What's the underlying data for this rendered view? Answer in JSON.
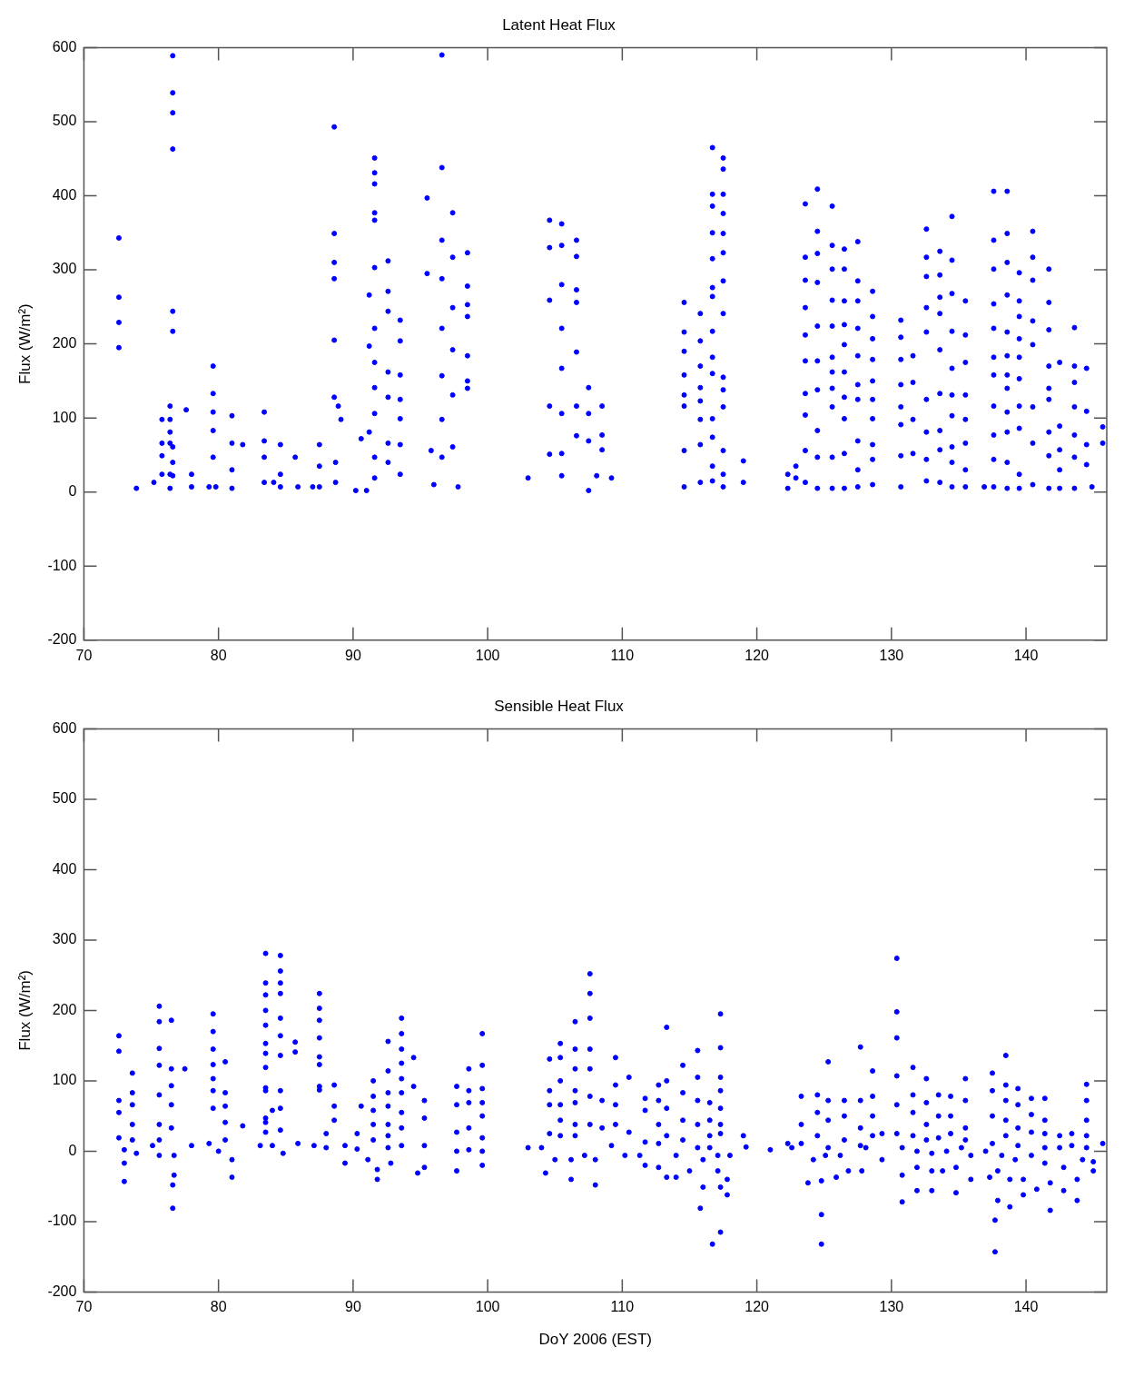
{
  "chart_data": [
    {
      "type": "scatter",
      "title": "Latent Heat Flux",
      "ylabel": "Flux (W/m²)",
      "xlim": [
        70,
        146
      ],
      "xticks": [
        70,
        80,
        90,
        100,
        110,
        120,
        130,
        140
      ],
      "ylim": [
        -200,
        600
      ],
      "yticks": [
        -200,
        -100,
        0,
        100,
        200,
        300,
        400,
        500,
        600
      ],
      "marker": "circle",
      "series": [
        {
          "color": "#0000ff",
          "x": [
            93.5,
            93.5,
            93.5,
            93.5,
            93.5,
            93.5,
            93.5,
            92.6,
            92.6,
            92.6,
            92.6,
            92.6,
            92.6,
            92.6,
            91.6,
            91.6,
            91.6,
            91.6,
            91.6,
            91.6,
            91.6,
            91.6,
            91.6,
            91.6,
            91.6,
            91.6,
            91.2,
            91.2,
            91.2,
            90.6,
            91.0,
            90.2,
            88.6,
            88.6,
            88.6,
            88.6,
            88.6,
            88.6,
            88.9,
            89.1,
            88.7,
            88.7,
            87.5,
            87.5,
            87.5,
            87.0,
            85.9,
            85.7,
            84.6,
            84.6,
            84.6,
            84.1,
            83.4,
            83.4,
            83.4,
            83.4,
            81.8,
            81.0,
            81.0,
            81.0,
            81.0,
            79.8,
            79.6,
            79.6,
            79.6,
            79.6,
            79.6,
            79.3,
            78.0,
            78.0,
            77.6,
            76.6,
            76.6,
            76.6,
            76.6,
            76.6,
            76.6,
            76.6,
            76.6,
            76.6,
            76.4,
            76.4,
            76.4,
            76.4,
            76.4,
            76.4,
            75.8,
            75.8,
            75.8,
            75.8,
            75.2,
            73.9,
            72.6,
            72.6,
            72.6,
            72.6,
            119.0,
            119.0,
            117.5,
            117.5,
            117.5,
            117.5,
            117.5,
            117.5,
            117.5,
            117.5,
            117.5,
            117.5,
            117.5,
            117.5,
            117.5,
            117.5,
            116.7,
            116.7,
            116.7,
            116.7,
            116.7,
            116.7,
            116.7,
            116.7,
            116.7,
            116.7,
            116.7,
            116.7,
            116.7,
            116.7,
            115.8,
            115.8,
            115.8,
            115.8,
            115.8,
            115.8,
            115.8,
            115.8,
            114.6,
            114.6,
            114.6,
            114.6,
            114.6,
            114.6,
            114.6,
            114.6,
            109.2,
            108.1,
            108.5,
            108.5,
            108.5,
            107.5,
            107.5,
            107.5,
            107.5,
            106.6,
            106.6,
            106.6,
            106.6,
            106.6,
            106.6,
            106.6,
            105.5,
            105.5,
            105.5,
            105.5,
            105.5,
            105.5,
            105.5,
            105.5,
            104.6,
            104.6,
            104.6,
            104.6,
            104.6,
            103.0,
            96.6,
            96.6,
            96.6,
            96.6,
            96.6,
            96.6,
            96.6,
            96.6,
            95.5,
            95.5,
            97.4,
            97.4,
            97.4,
            97.4,
            97.4,
            97.4,
            98.5,
            98.5,
            98.5,
            98.5,
            98.5,
            98.5,
            98.5,
            97.8,
            96.0,
            95.8,
            145.7,
            145.7,
            144.9,
            144.5,
            144.5,
            144.5,
            144.5,
            143.6,
            143.6,
            143.6,
            143.6,
            143.6,
            143.6,
            143.6,
            142.5,
            142.5,
            142.5,
            142.5,
            142.5,
            141.7,
            141.7,
            141.7,
            141.7,
            141.7,
            141.7,
            141.7,
            141.7,
            141.7,
            140.5,
            140.5,
            140.5,
            140.5,
            140.5,
            140.5,
            140.5,
            140.5,
            139.5,
            139.5,
            139.5,
            139.5,
            139.5,
            139.5,
            139.5,
            139.5,
            139.5,
            139.5,
            138.6,
            138.6,
            138.6,
            138.6,
            138.6,
            138.6,
            138.6,
            138.6,
            138.6,
            138.6,
            138.6,
            138.6,
            137.6,
            137.6,
            137.6,
            137.6,
            137.6,
            137.6,
            137.6,
            137.6,
            137.6,
            137.6,
            137.6,
            136.9,
            135.5,
            135.5,
            135.5,
            135.5,
            135.5,
            135.5,
            135.5,
            135.5,
            134.5,
            134.5,
            134.5,
            134.5,
            134.5,
            134.5,
            134.5,
            134.5,
            134.5,
            134.5,
            133.6,
            133.6,
            133.6,
            133.6,
            133.6,
            133.6,
            133.6,
            133.6,
            133.6,
            132.6,
            132.6,
            132.6,
            132.6,
            132.6,
            132.6,
            132.6,
            132.6,
            132.6,
            131.6,
            131.6,
            131.6,
            131.6,
            130.7,
            130.7,
            130.7,
            130.7,
            130.7,
            130.7,
            130.7,
            130.7,
            128.6,
            128.6,
            128.6,
            128.6,
            128.6,
            128.6,
            128.6,
            128.6,
            128.6,
            128.6,
            127.5,
            127.5,
            127.5,
            127.5,
            127.5,
            127.5,
            127.5,
            127.5,
            127.5,
            127.5,
            126.5,
            126.5,
            126.5,
            126.5,
            126.5,
            126.5,
            126.5,
            126.5,
            126.5,
            126.5,
            125.6,
            125.6,
            125.6,
            125.6,
            125.6,
            125.6,
            125.6,
            125.6,
            125.6,
            125.6,
            125.6,
            124.5,
            124.5,
            124.5,
            124.5,
            124.5,
            124.5,
            124.5,
            124.5,
            124.5,
            124.5,
            123.6,
            123.6,
            123.6,
            123.6,
            123.6,
            123.6,
            123.6,
            123.6,
            123.6,
            123.6,
            122.9,
            122.9,
            122.3,
            122.3
          ],
          "values": [
            232,
            204,
            158,
            125,
            99,
            64,
            24,
            312,
            271,
            244,
            162,
            128,
            66,
            40,
            451,
            431,
            416,
            377,
            367,
            303,
            221,
            175,
            141,
            106,
            47,
            19,
            266,
            197,
            81,
            72,
            2,
            2,
            493,
            349,
            310,
            288,
            205,
            128,
            116,
            98,
            40,
            13,
            64,
            35,
            7,
            7,
            7,
            47,
            64,
            24,
            7,
            13,
            108,
            69,
            47,
            13,
            64,
            103,
            66,
            30,
            5,
            7,
            170,
            133,
            108,
            83,
            47,
            7,
            24,
            7,
            111,
            589,
            539,
            512,
            463,
            244,
            217,
            61,
            40,
            22,
            116,
            98,
            81,
            66,
            24,
            5,
            98,
            66,
            49,
            24,
            13,
            5,
            343,
            263,
            229,
            195,
            42,
            13,
            451,
            436,
            402,
            376,
            349,
            323,
            285,
            241,
            155,
            138,
            115,
            56,
            24,
            7,
            465,
            402,
            386,
            350,
            315,
            276,
            264,
            217,
            182,
            160,
            99,
            74,
            35,
            15,
            241,
            204,
            170,
            141,
            123,
            98,
            64,
            13,
            256,
            216,
            190,
            158,
            131,
            116,
            56,
            7,
            19,
            22,
            116,
            77,
            57,
            141,
            106,
            69,
            2,
            340,
            318,
            273,
            256,
            189,
            116,
            76,
            362,
            333,
            280,
            221,
            167,
            106,
            52,
            22,
            367,
            330,
            259,
            116,
            51,
            19,
            590,
            438,
            340,
            288,
            221,
            157,
            98,
            47,
            397,
            295,
            377,
            317,
            249,
            192,
            131,
            61,
            323,
            278,
            253,
            237,
            184,
            150,
            140,
            7,
            10,
            56,
            88,
            66,
            7,
            167,
            109,
            64,
            37,
            222,
            170,
            148,
            115,
            77,
            47,
            5,
            175,
            89,
            57,
            30,
            5,
            301,
            256,
            219,
            170,
            140,
            125,
            81,
            49,
            5,
            352,
            317,
            286,
            231,
            199,
            115,
            66,
            10,
            296,
            258,
            237,
            207,
            182,
            153,
            116,
            86,
            24,
            5,
            406,
            349,
            310,
            266,
            216,
            184,
            158,
            140,
            108,
            81,
            40,
            5,
            406,
            340,
            301,
            254,
            221,
            182,
            158,
            116,
            77,
            44,
            7,
            7,
            258,
            212,
            175,
            131,
            98,
            66,
            30,
            7,
            372,
            313,
            268,
            217,
            167,
            131,
            103,
            61,
            40,
            7,
            325,
            293,
            263,
            241,
            192,
            133,
            83,
            57,
            13,
            355,
            317,
            291,
            249,
            216,
            125,
            81,
            44,
            15,
            184,
            148,
            98,
            52,
            232,
            209,
            179,
            145,
            115,
            91,
            49,
            7,
            271,
            237,
            207,
            179,
            150,
            125,
            99,
            64,
            44,
            10,
            338,
            285,
            258,
            221,
            184,
            145,
            125,
            69,
            30,
            7,
            328,
            301,
            258,
            226,
            199,
            162,
            128,
            99,
            52,
            5,
            386,
            333,
            301,
            259,
            224,
            182,
            162,
            140,
            115,
            47,
            5,
            409,
            352,
            322,
            283,
            224,
            177,
            138,
            83,
            47,
            5,
            389,
            317,
            286,
            249,
            212,
            177,
            133,
            104,
            56,
            13,
            35,
            19,
            24,
            5
          ]
        }
      ]
    },
    {
      "type": "scatter",
      "title": "Sensible Heat Flux",
      "xlabel": "DoY 2006 (EST)",
      "ylabel": "Flux (W/m²)",
      "xlim": [
        70,
        146
      ],
      "xticks": [
        70,
        80,
        90,
        100,
        110,
        120,
        130,
        140
      ],
      "ylim": [
        -200,
        600
      ],
      "yticks": [
        -200,
        -100,
        0,
        100,
        200,
        300,
        400,
        500,
        600
      ],
      "marker": "circle",
      "series": [
        {
          "color": "#0000ff",
          "x": [
            145.7,
            145.0,
            145.0,
            144.5,
            144.5,
            144.5,
            144.5,
            144.5,
            144.2,
            143.8,
            143.8,
            143.4,
            143.4,
            142.8,
            142.8,
            142.5,
            142.5,
            141.8,
            141.8,
            141.4,
            141.4,
            141.4,
            141.4,
            141.4,
            140.8,
            140.4,
            140.4,
            140.4,
            140.4,
            139.8,
            139.8,
            139.4,
            139.4,
            139.4,
            139.4,
            139.2,
            138.8,
            138.8,
            138.5,
            138.5,
            138.5,
            138.5,
            138.5,
            138.2,
            137.9,
            137.9,
            137.7,
            137.7,
            137.5,
            137.5,
            137.5,
            137.5,
            137.0,
            137.3,
            135.5,
            135.5,
            135.5,
            135.5,
            135.9,
            135.9,
            134.4,
            134.4,
            134.4,
            135.2,
            134.8,
            134.8,
            133.5,
            133.5,
            133.5,
            134.1,
            133.8,
            132.6,
            132.6,
            132.6,
            132.6,
            133.0,
            133.0,
            133.0,
            131.6,
            131.6,
            131.6,
            131.6,
            131.9,
            131.9,
            131.9,
            130.4,
            130.4,
            130.4,
            130.4,
            130.4,
            130.4,
            130.8,
            130.8,
            130.8,
            129.3,
            129.3,
            128.6,
            128.6,
            128.6,
            128.6,
            128.1,
            127.8,
            127.7,
            127.7,
            127.7,
            127.7,
            126.8,
            126.5,
            126.5,
            126.5,
            126.2,
            125.9,
            125.3,
            125.3,
            125.3,
            125.3,
            125.1,
            124.8,
            124.8,
            124.8,
            124.5,
            124.5,
            124.5,
            124.2,
            123.8,
            123.3,
            123.3,
            123.3,
            122.6,
            122.3,
            121.0,
            119.0,
            119.2,
            118.0,
            117.8,
            117.8,
            117.3,
            117.3,
            117.3,
            117.3,
            117.3,
            117.3,
            117.3,
            117.3,
            117.3,
            116.7,
            117.1,
            117.1,
            116.5,
            116.5,
            116.5,
            116.5,
            116.0,
            116.0,
            115.8,
            115.6,
            115.6,
            115.6,
            115.6,
            115.6,
            115.0,
            114.5,
            114.5,
            114.5,
            114.5,
            114.0,
            114.0,
            113.3,
            113.3,
            113.3,
            113.3,
            113.3,
            112.7,
            112.7,
            112.7,
            112.7,
            112.7,
            111.7,
            111.7,
            111.7,
            111.7,
            110.5,
            110.5,
            110.2,
            111.3,
            109.5,
            109.5,
            109.5,
            109.5,
            109.2,
            108.5,
            108.5,
            108.0,
            108.0,
            107.6,
            107.6,
            107.6,
            107.6,
            107.6,
            107.6,
            107.6,
            107.2,
            106.5,
            106.5,
            106.5,
            106.5,
            106.5,
            106.5,
            106.5,
            106.2,
            106.2,
            105.4,
            105.4,
            105.4,
            105.4,
            105.4,
            105.4,
            105.0,
            104.6,
            104.6,
            104.6,
            104.6,
            104.3,
            104.0,
            103.0,
            99.6,
            99.6,
            99.6,
            99.6,
            99.6,
            99.6,
            99.6,
            99.6,
            98.6,
            98.6,
            98.6,
            98.6,
            98.6,
            97.7,
            97.7,
            97.7,
            97.7,
            97.7,
            95.3,
            95.3,
            95.3,
            95.3,
            94.8,
            94.5,
            94.5,
            93.6,
            93.6,
            93.6,
            93.6,
            93.6,
            93.6,
            93.6,
            93.6,
            93.6,
            92.8,
            92.6,
            92.6,
            92.6,
            92.6,
            92.6,
            92.6,
            92.6,
            91.5,
            91.5,
            91.5,
            91.5,
            91.5,
            91.8,
            91.8,
            91.1,
            90.6,
            90.3,
            90.3,
            89.4,
            89.4,
            88.6,
            88.6,
            88.6,
            88.0,
            88.0,
            87.5,
            87.5,
            87.5,
            87.5,
            87.5,
            87.5,
            87.5,
            87.5,
            87.1,
            85.9,
            85.7,
            85.7,
            84.6,
            84.6,
            84.6,
            84.6,
            84.6,
            84.6,
            84.6,
            84.6,
            84.6,
            84.6,
            84.8,
            84.0,
            84.0,
            83.5,
            83.5,
            83.5,
            83.5,
            83.5,
            83.5,
            83.5,
            83.5,
            83.5,
            83.5,
            83.5,
            83.5,
            83.5,
            83.1,
            81.8,
            80.5,
            80.5,
            80.5,
            80.5,
            80.5,
            81.0,
            81.0,
            80.0,
            79.6,
            79.6,
            79.6,
            79.6,
            79.6,
            79.6,
            79.6,
            79.3,
            78.0,
            77.5,
            76.7,
            76.7,
            76.6,
            76.6,
            76.5,
            76.5,
            76.5,
            76.5,
            76.5,
            75.6,
            75.6,
            75.6,
            75.6,
            75.6,
            75.6,
            75.6,
            75.6,
            75.1,
            73.6,
            73.6,
            73.6,
            73.6,
            73.6,
            73.9,
            72.6,
            72.6,
            72.6,
            72.6,
            72.6,
            73.0,
            73.0,
            73.0
          ],
          "values": [
            11,
            -15,
            -28,
            95,
            72,
            44,
            22,
            5,
            -12,
            -40,
            -70,
            25,
            8,
            -23,
            -56,
            22,
            5,
            -45,
            -84,
            75,
            44,
            25,
            5,
            -17,
            -54,
            75,
            52,
            27,
            -6,
            -40,
            -62,
            89,
            66,
            33,
            8,
            -12,
            -40,
            -79,
            136,
            94,
            72,
            44,
            22,
            -6,
            -28,
            -70,
            -98,
            -143,
            111,
            86,
            50,
            11,
            0,
            -37,
            103,
            72,
            33,
            16,
            -6,
            -40,
            78,
            50,
            25,
            5,
            -23,
            -59,
            80,
            50,
            19,
            0,
            -28,
            103,
            69,
            38,
            16,
            -3,
            -28,
            -56,
            119,
            80,
            55,
            22,
            0,
            -23,
            -56,
            274,
            198,
            161,
            107,
            66,
            25,
            5,
            -34,
            -72,
            25,
            -12,
            114,
            78,
            50,
            22,
            5,
            -28,
            148,
            72,
            33,
            8,
            -28,
            72,
            50,
            16,
            -6,
            -37,
            127,
            72,
            44,
            5,
            -6,
            -42,
            -90,
            -132,
            80,
            55,
            22,
            -12,
            -45,
            78,
            38,
            11,
            5,
            11,
            2,
            22,
            6,
            -6,
            -40,
            -62,
            195,
            147,
            105,
            86,
            61,
            38,
            25,
            -51,
            -115,
            -132,
            -6,
            -28,
            69,
            44,
            22,
            5,
            -12,
            -51,
            -81,
            143,
            105,
            72,
            38,
            5,
            -28,
            122,
            83,
            44,
            16,
            -6,
            -37,
            176,
            100,
            61,
            22,
            -37,
            94,
            72,
            38,
            11,
            -23,
            75,
            58,
            13,
            -20,
            105,
            27,
            -6,
            -6,
            133,
            94,
            66,
            38,
            8,
            72,
            33,
            -12,
            -48,
            252,
            224,
            189,
            145,
            117,
            78,
            38,
            -6,
            184,
            145,
            117,
            86,
            69,
            38,
            22,
            -12,
            -40,
            153,
            133,
            100,
            66,
            44,
            22,
            -12,
            131,
            86,
            66,
            25,
            -31,
            5,
            5,
            167,
            122,
            89,
            69,
            50,
            19,
            0,
            -20,
            117,
            86,
            69,
            33,
            2,
            92,
            66,
            27,
            0,
            -28,
            72,
            47,
            8,
            -23,
            -31,
            133,
            92,
            189,
            167,
            145,
            125,
            103,
            83,
            55,
            33,
            8,
            -17,
            156,
            114,
            83,
            64,
            38,
            22,
            5,
            100,
            78,
            58,
            38,
            16,
            -26,
            -40,
            -12,
            64,
            25,
            3,
            8,
            -17,
            94,
            64,
            44,
            25,
            5,
            224,
            203,
            186,
            161,
            134,
            123,
            92,
            87,
            8,
            11,
            155,
            141,
            278,
            256,
            239,
            224,
            189,
            164,
            136,
            86,
            61,
            30,
            -3,
            8,
            58,
            281,
            239,
            222,
            200,
            179,
            153,
            139,
            119,
            90,
            86,
            47,
            41,
            27,
            8,
            36,
            127,
            83,
            64,
            41,
            16,
            -12,
            -37,
            0,
            195,
            170,
            145,
            123,
            103,
            86,
            61,
            11,
            8,
            117,
            -6,
            -34,
            -48,
            -81,
            186,
            117,
            93,
            66,
            33,
            206,
            184,
            146,
            122,
            80,
            38,
            16,
            -6,
            8,
            111,
            83,
            66,
            38,
            16,
            -3,
            164,
            142,
            72,
            55,
            19,
            2,
            -17,
            -43
          ]
        }
      ]
    }
  ]
}
